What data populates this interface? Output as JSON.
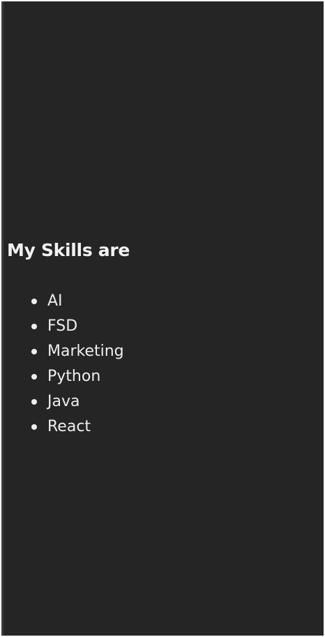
{
  "colors": {
    "background": "#252525",
    "text": "#eeeeee"
  },
  "page": {
    "heading": "My Skills are",
    "skills": [
      {
        "label": "AI"
      },
      {
        "label": "FSD"
      },
      {
        "label": "Marketing"
      },
      {
        "label": "Python"
      },
      {
        "label": "Java"
      },
      {
        "label": "React"
      }
    ]
  }
}
